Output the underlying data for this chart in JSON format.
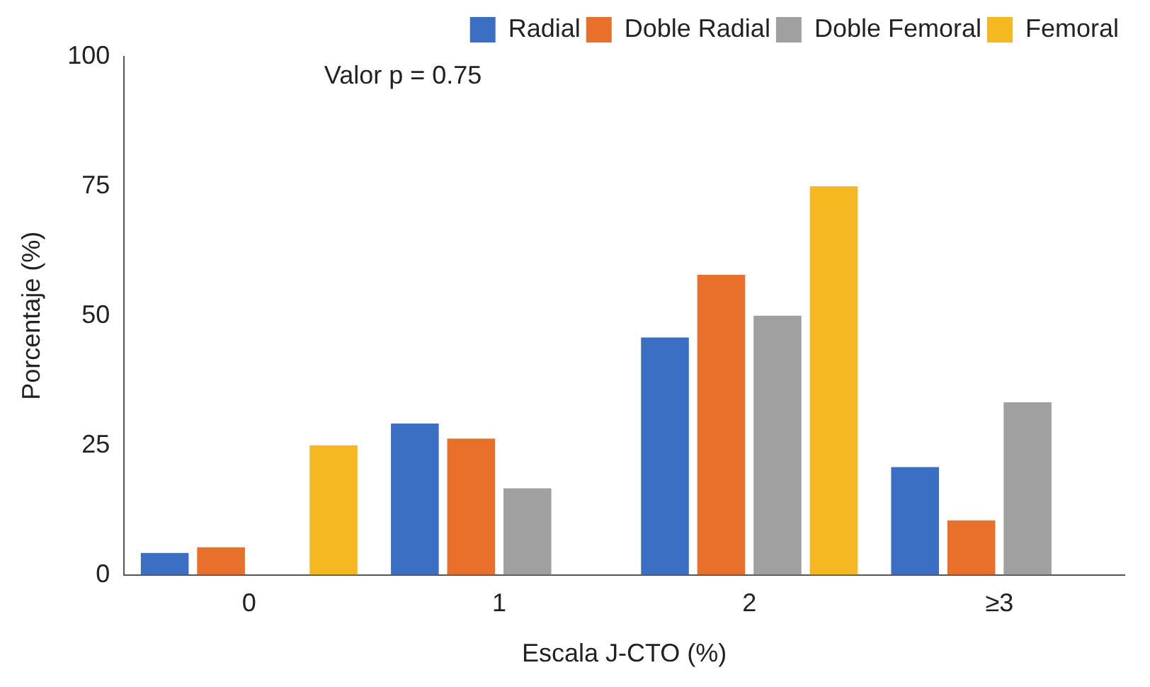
{
  "chart_data": {
    "type": "bar",
    "xlabel": "Escala J-CTO (%)",
    "ylabel": "Porcentaje (%)",
    "categories": [
      "0",
      "1",
      "2",
      "≥3"
    ],
    "series": [
      {
        "name": "Radial",
        "color": "#3a6fc4",
        "values": [
          4.2,
          29.2,
          45.8,
          20.8
        ]
      },
      {
        "name": "Doble Radial",
        "color": "#e8702a",
        "values": [
          5.3,
          26.3,
          57.9,
          10.5
        ]
      },
      {
        "name": "Doble Femoral",
        "color": "#a0a0a0",
        "values": [
          0,
          16.7,
          50,
          33.3
        ]
      },
      {
        "name": "Femoral",
        "color": "#f5b820",
        "values": [
          25,
          0,
          75,
          0
        ]
      }
    ],
    "ylim": [
      0,
      100
    ],
    "yticks": [
      0,
      25,
      50,
      75,
      100
    ],
    "grid": false,
    "legend": "top right",
    "annotations": [
      "Valor p = 0.75"
    ]
  }
}
